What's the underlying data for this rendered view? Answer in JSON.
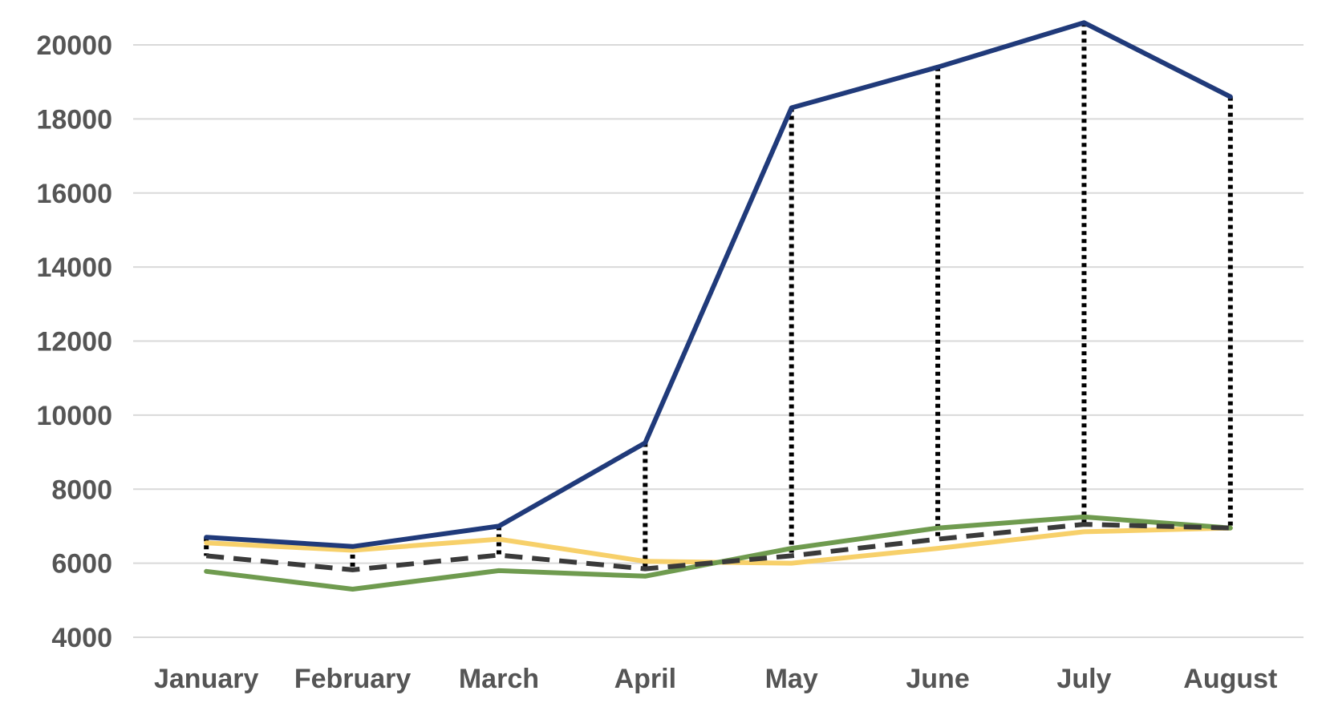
{
  "chart_data": {
    "type": "line",
    "title": "",
    "xlabel": "",
    "ylabel": "",
    "categories": [
      "January",
      "February",
      "March",
      "April",
      "May",
      "June",
      "July",
      "August"
    ],
    "y_ticks": [
      "4000",
      "6000",
      "8000",
      "10000",
      "12000",
      "14000",
      "16000",
      "18000",
      "20000"
    ],
    "ylim": [
      4000,
      20000
    ],
    "grid": true,
    "legend": "none",
    "series": [
      {
        "id": "navy",
        "color": "#203a7a",
        "style": "solid",
        "values": [
          6700,
          6450,
          7000,
          9250,
          18300,
          19400,
          20600,
          18600
        ]
      },
      {
        "id": "yellow",
        "color": "#f7d06a",
        "style": "solid",
        "values": [
          6550,
          6350,
          6650,
          6050,
          6000,
          6400,
          6850,
          6950
        ]
      },
      {
        "id": "green",
        "color": "#6f9b4f",
        "style": "solid",
        "values": [
          5780,
          5300,
          5800,
          5650,
          6400,
          6950,
          7250,
          6950
        ]
      },
      {
        "id": "dark-dashed",
        "color": "#3a3a3a",
        "style": "dashed",
        "values": [
          6200,
          5820,
          6220,
          5850,
          6200,
          6650,
          7050,
          6950
        ]
      }
    ],
    "drop_lines": {
      "color": "#000000",
      "style": "dotted",
      "from_series": "navy",
      "to_series": "dark-dashed"
    }
  }
}
